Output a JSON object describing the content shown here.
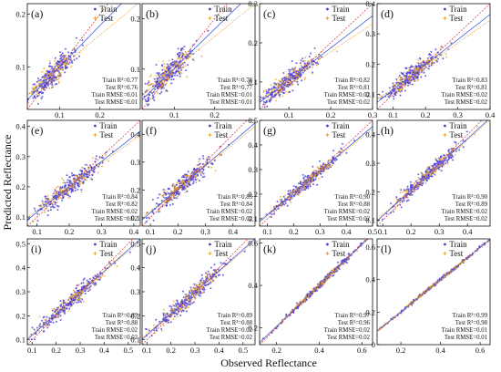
{
  "figure": {
    "ylabel": "Predicted Reflectance",
    "xlabel": "Observed Reflectance"
  },
  "chart_data": [
    {
      "type": "scatter",
      "panel": "(a)",
      "xlim": [
        0.02,
        0.3
      ],
      "ylim": [
        0.02,
        0.22
      ],
      "xticks": [
        0.1,
        0.2
      ],
      "yticks": [
        0.1,
        0.2
      ],
      "center": [
        0.08,
        0.085
      ],
      "spread_x": 0.028,
      "spread_y": 0.022,
      "fit_train_slope": 0.78,
      "fit_test_slope": 0.63,
      "legend": [
        "Train",
        "Test"
      ],
      "metrics": [
        "Train R²=0.77",
        "Test R²=0.76",
        "Train RMSE=0.01",
        "Test RMSE=0.01"
      ]
    },
    {
      "type": "scatter",
      "panel": "(b)",
      "xlim": [
        0.02,
        0.3
      ],
      "ylim": [
        0.02,
        0.23
      ],
      "xticks": [
        0.1,
        0.2
      ],
      "yticks": [
        0.1,
        0.2
      ],
      "center": [
        0.085,
        0.09
      ],
      "spread_x": 0.03,
      "spread_y": 0.024,
      "fit_train_slope": 0.78,
      "fit_test_slope": 0.65,
      "legend": [
        "Train",
        "Test"
      ],
      "metrics": [
        "Train R²=0.78",
        "Test R²=0.77",
        "Train RMSE=0.01",
        "Test RMSE=0.01"
      ]
    },
    {
      "type": "scatter",
      "panel": "(c)",
      "xlim": [
        0.03,
        0.3
      ],
      "ylim": [
        0.03,
        0.3
      ],
      "xticks": [
        0.1,
        0.2,
        0.3
      ],
      "yticks": [
        0.1,
        0.2,
        0.3
      ],
      "center": [
        0.1,
        0.105
      ],
      "spread_x": 0.035,
      "spread_y": 0.03,
      "fit_train_slope": 0.82,
      "fit_test_slope": 0.72,
      "legend": [
        "Train",
        "Test"
      ],
      "metrics": [
        "Train R²=0.82",
        "Test R²=0.81",
        "Train RMSE=0.02",
        "Test RMSE=0.02"
      ]
    },
    {
      "type": "scatter",
      "panel": "(d)",
      "xlim": [
        0.05,
        0.4
      ],
      "ylim": [
        0.05,
        0.4
      ],
      "xticks": [
        0.1,
        0.2,
        0.3,
        0.4
      ],
      "yticks": [
        0.1,
        0.2,
        0.3,
        0.4
      ],
      "center": [
        0.16,
        0.165
      ],
      "spread_x": 0.045,
      "spread_y": 0.04,
      "fit_train_slope": 0.83,
      "fit_test_slope": 0.75,
      "legend": [
        "Train",
        "Test"
      ],
      "metrics": [
        "Train R²=0.83",
        "Test R²=0.81",
        "Train RMSE=0.02",
        "Test RMSE=0.02"
      ]
    },
    {
      "type": "scatter",
      "panel": "(e)",
      "xlim": [
        0.07,
        0.42
      ],
      "ylim": [
        0.07,
        0.42
      ],
      "xticks": [
        0.1,
        0.2,
        0.3,
        0.4
      ],
      "yticks": [
        0.1,
        0.2,
        0.3,
        0.4
      ],
      "center": [
        0.2,
        0.2
      ],
      "spread_x": 0.05,
      "spread_y": 0.045,
      "fit_train_slope": 0.84,
      "fit_test_slope": 0.78,
      "legend": [
        "Train",
        "Test"
      ],
      "metrics": [
        "Train R²=0.84",
        "Test R²=0.82",
        "Train RMSE=0.02",
        "Test RMSE=0.02"
      ]
    },
    {
      "type": "scatter",
      "panel": "(f)",
      "xlim": [
        0.07,
        0.48
      ],
      "ylim": [
        0.07,
        0.45
      ],
      "xticks": [
        0.1,
        0.2,
        0.3,
        0.4
      ],
      "yticks": [
        0.1,
        0.2,
        0.3,
        0.4
      ],
      "center": [
        0.22,
        0.22
      ],
      "spread_x": 0.055,
      "spread_y": 0.05,
      "fit_train_slope": 0.85,
      "fit_test_slope": 0.8,
      "legend": [
        "Train",
        "Test"
      ],
      "metrics": [
        "Train R²=0.85",
        "Test R²=0.84",
        "Train RMSE=0.02",
        "Test RMSE=0.02"
      ]
    },
    {
      "type": "scatter",
      "panel": "(g)",
      "xlim": [
        0.07,
        0.5
      ],
      "ylim": [
        0.07,
        0.5
      ],
      "xticks": [
        0.1,
        0.2,
        0.3,
        0.4,
        0.5
      ],
      "yticks": [
        0.1,
        0.2,
        0.3,
        0.4,
        0.5
      ],
      "center": [
        0.25,
        0.25
      ],
      "spread_x": 0.065,
      "spread_y": 0.06,
      "fit_train_slope": 0.9,
      "fit_test_slope": 0.86,
      "legend": [
        "Train",
        "Test"
      ],
      "metrics": [
        "Train R²=0.90",
        "Test R²=0.88",
        "Train RMSE=0.02",
        "Test RMSE=0.02"
      ]
    },
    {
      "type": "scatter",
      "panel": "(h)",
      "xlim": [
        0.08,
        0.48
      ],
      "ylim": [
        0.08,
        0.45
      ],
      "xticks": [
        0.1,
        0.2,
        0.3,
        0.4
      ],
      "yticks": [
        0.1,
        0.2,
        0.3,
        0.4
      ],
      "center": [
        0.26,
        0.26
      ],
      "spread_x": 0.06,
      "spread_y": 0.055,
      "fit_train_slope": 0.9,
      "fit_test_slope": 0.87,
      "legend": [
        "Train",
        "Test"
      ],
      "metrics": [
        "Train R²=0.90",
        "Test R²=0.89",
        "Train RMSE=0.02",
        "Test RMSE=0.02"
      ]
    },
    {
      "type": "scatter",
      "panel": "(i)",
      "xlim": [
        0.08,
        0.55
      ],
      "ylim": [
        0.08,
        0.52
      ],
      "xticks": [
        0.1,
        0.2,
        0.3,
        0.4,
        0.5
      ],
      "yticks": [
        0.1,
        0.2,
        0.3,
        0.4,
        0.5
      ],
      "center": [
        0.27,
        0.27
      ],
      "spread_x": 0.07,
      "spread_y": 0.065,
      "fit_train_slope": 0.89,
      "fit_test_slope": 0.86,
      "legend": [
        "Train",
        "Test"
      ],
      "metrics": [
        "Train R²=0.89",
        "Test R²=0.88",
        "Train RMSE=0.02",
        "Test RMSE=0.02"
      ]
    },
    {
      "type": "scatter",
      "panel": "(j)",
      "xlim": [
        0.08,
        0.55
      ],
      "ylim": [
        0.08,
        0.52
      ],
      "xticks": [
        0.1,
        0.2,
        0.3,
        0.4,
        0.5
      ],
      "yticks": [
        0.1,
        0.2,
        0.3,
        0.4,
        0.5
      ],
      "center": [
        0.28,
        0.28
      ],
      "spread_x": 0.075,
      "spread_y": 0.068,
      "fit_train_slope": 0.89,
      "fit_test_slope": 0.86,
      "legend": [
        "Train",
        "Test"
      ],
      "metrics": [
        "Train R²=0.89",
        "Test R²=0.88",
        "Train RMSE=0.02",
        "Test RMSE=0.02"
      ]
    },
    {
      "type": "scatter",
      "panel": "(k)",
      "xlim": [
        0.12,
        0.65
      ],
      "ylim": [
        0.12,
        0.62
      ],
      "xticks": [
        0.2,
        0.4,
        0.6
      ],
      "yticks": [
        0.2,
        0.4,
        0.6
      ],
      "center": [
        0.4,
        0.4
      ],
      "spread_x": 0.09,
      "spread_y": 0.085,
      "fit_train_slope": 0.97,
      "fit_test_slope": 0.95,
      "legend": [
        "Train",
        "Test"
      ],
      "metrics": [
        "Train R²=0.97",
        "Test R²=0.96",
        "Train RMSE=0.02",
        "Test RMSE=0.02"
      ]
    },
    {
      "type": "scatter",
      "panel": "(l)",
      "xlim": [
        0.08,
        0.65
      ],
      "ylim": [
        0.0,
        0.65
      ],
      "xticks": [
        0.2,
        0.4,
        0.6
      ],
      "yticks": [
        0.0,
        0.2,
        0.4,
        0.6
      ],
      "center": [
        0.38,
        0.38
      ],
      "spread_x": 0.12,
      "spread_y": 0.12,
      "fit_train_slope": 0.99,
      "fit_test_slope": 0.98,
      "legend": [
        "Train",
        "Test"
      ],
      "metrics": [
        "Train R²=0.99",
        "Test R²=0.98",
        "Train RMSE=0.01",
        "Test RMSE=0.01"
      ]
    }
  ],
  "colors": {
    "train": "#4a3dd8",
    "test": "#e8a030",
    "fit_identity": "#d43030",
    "fit_train": "#2a4ad8",
    "fit_test": "#e8a030"
  }
}
